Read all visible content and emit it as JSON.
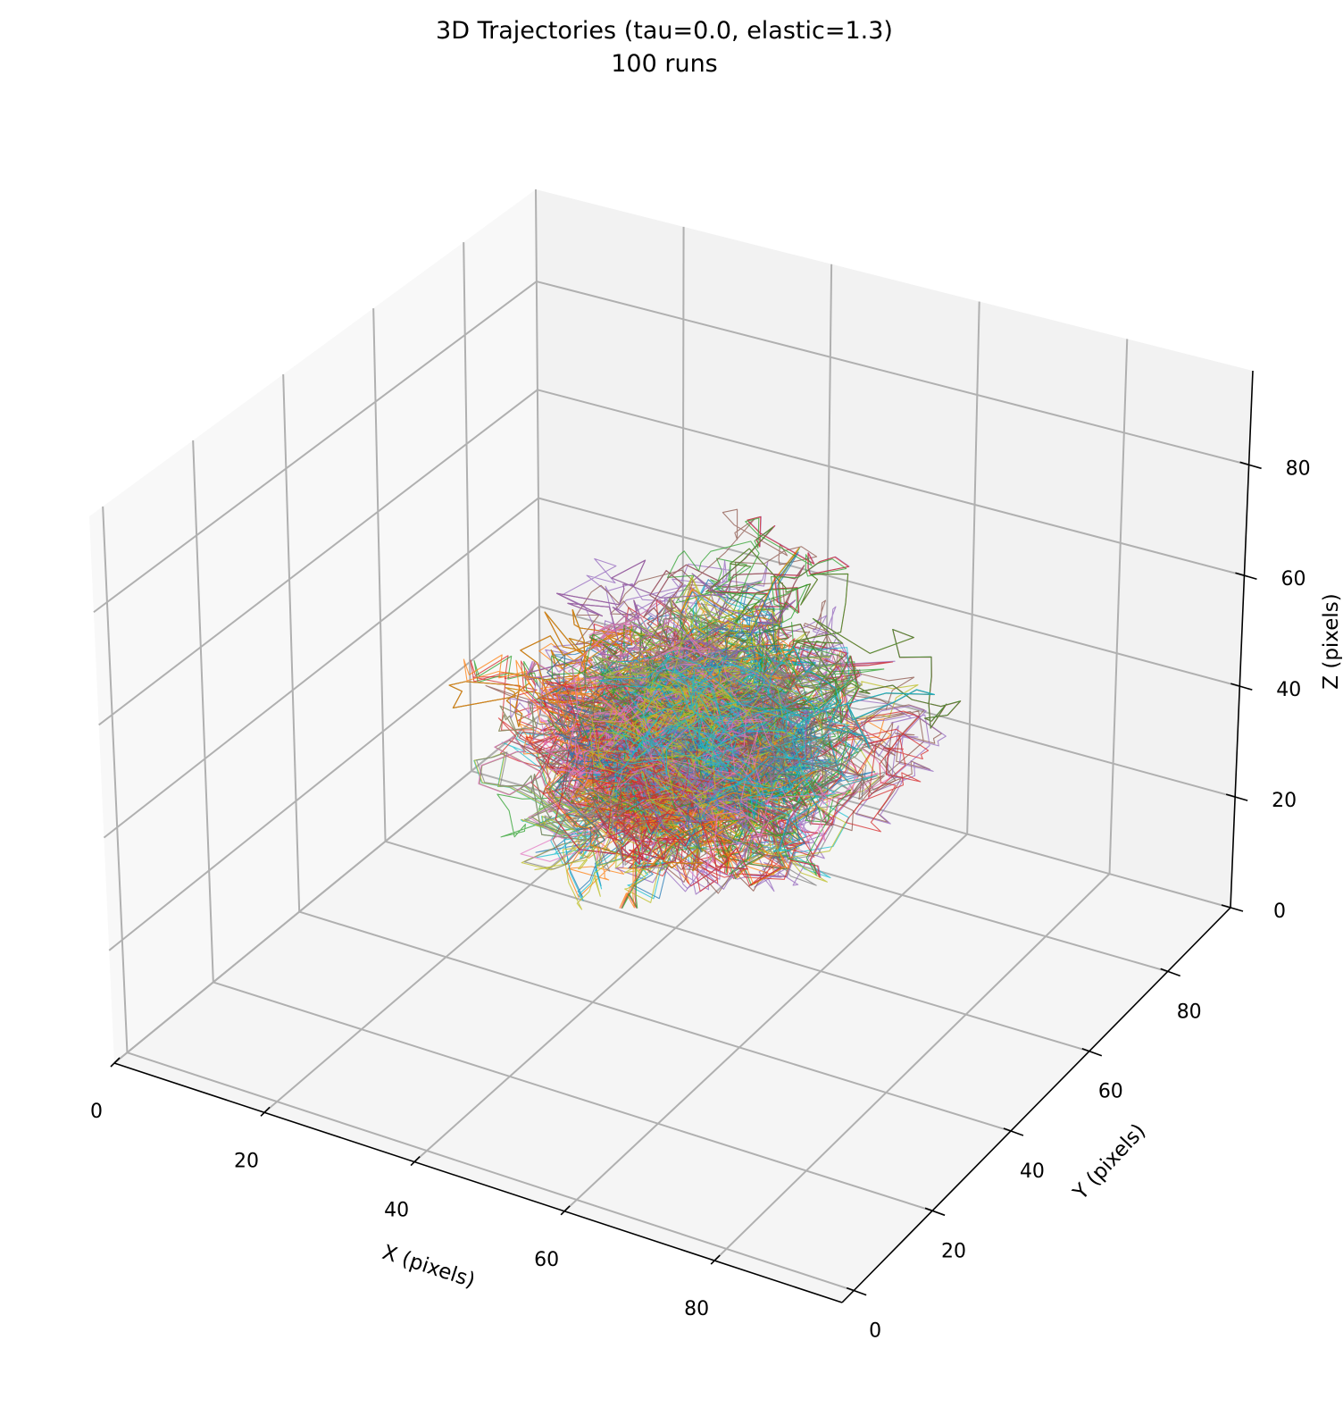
{
  "chart_data": {
    "type": "line3d",
    "title": "3D Trajectories (tau=0.0, elastic=1.3)",
    "subtitle": "100 runs",
    "xlabel": "X (pixels)",
    "ylabel": "Y (pixels)",
    "zlabel": "Z (pixels)",
    "xlim": [
      0,
      97
    ],
    "ylim": [
      -3,
      96
    ],
    "zlim": [
      0,
      97
    ],
    "xticks": [
      0,
      20,
      40,
      60,
      80
    ],
    "yticks": [
      0,
      20,
      40,
      60,
      80
    ],
    "zticks": [
      0,
      20,
      40,
      60,
      80
    ],
    "grid": true,
    "view": {
      "elev": 30,
      "azim": -60
    },
    "runs": 100,
    "trajectory_cluster_center": [
      48,
      48,
      45
    ],
    "colors": [
      "#1f77b4",
      "#ff7f0e",
      "#2ca02c",
      "#d62728",
      "#9467bd",
      "#8c564b",
      "#e377c2",
      "#7f7f7f",
      "#bcbd22",
      "#17becf"
    ],
    "pane_colors": {
      "left": "#f8f8f8",
      "back": "#f2f2f2",
      "floor": "#f5f5f5"
    },
    "grid_color": "#b0b0b0"
  }
}
